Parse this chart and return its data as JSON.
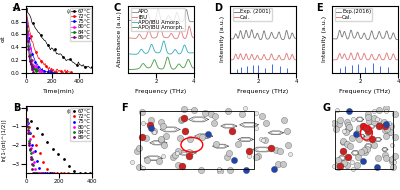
{
  "panel_A": {
    "label": "A",
    "sublabel": "(a)",
    "xlabel": "Time(min)",
    "ylabel": "αt",
    "temperatures": [
      "67°C",
      "72°C",
      "75°C",
      "80°C",
      "84°C",
      "89°C"
    ],
    "colors": [
      "black",
      "red",
      "blue",
      "magenta",
      "green",
      "purple"
    ],
    "x_max": 500,
    "ylim": [
      0,
      1.05
    ]
  },
  "panel_B": {
    "label": "B",
    "sublabel": "(b)",
    "xlabel": "Time(min)",
    "ylabel": "ln[1-(αt)^(1/2)]",
    "temperatures": [
      "67°C",
      "72°C",
      "75°C",
      "80°C",
      "84°C",
      "89°C"
    ],
    "colors": [
      "black",
      "red",
      "blue",
      "magenta",
      "green",
      "purple"
    ],
    "x_max": 400,
    "ylim": [
      -3.5,
      0.1
    ]
  },
  "panel_C": {
    "label": "C",
    "xlabel": "Frequency (THz)",
    "ylabel": "Absorbance (a.u.)",
    "series_labels": [
      "APO",
      "IBU",
      "APO/IBU Amorp.",
      "APO/IBU Amorph."
    ],
    "colors": [
      "#909090",
      "#E08080",
      "#40B0C0",
      "#50A050"
    ],
    "xlim": [
      0.5,
      4.0
    ]
  },
  "panel_D": {
    "label": "D",
    "xlabel": "Frequency (THz)",
    "ylabel": "Intensity (a.u.)",
    "series_labels": [
      "Exp. (2001)",
      "Cal."
    ],
    "colors": [
      "#808080",
      "#E08080",
      "#4169E1"
    ],
    "xlim": [
      0.5,
      4.0
    ]
  },
  "panel_E": {
    "label": "E",
    "xlabel": "Frequency (THz)",
    "ylabel": "Intensity (a.u.)",
    "series_labels": [
      "Exp.(2016)",
      "Cal."
    ],
    "colors": [
      "#808080",
      "#E08080",
      "#4169E1"
    ],
    "xlim": [
      0.5,
      4.0
    ]
  },
  "panel_F": {
    "label": "F",
    "bg_color": "#f0ede8"
  },
  "panel_G": {
    "label": "G",
    "bg_color": "#f0ede8"
  },
  "font_size_label": 7,
  "font_size_tick": 4.5,
  "font_size_legend": 3.8
}
